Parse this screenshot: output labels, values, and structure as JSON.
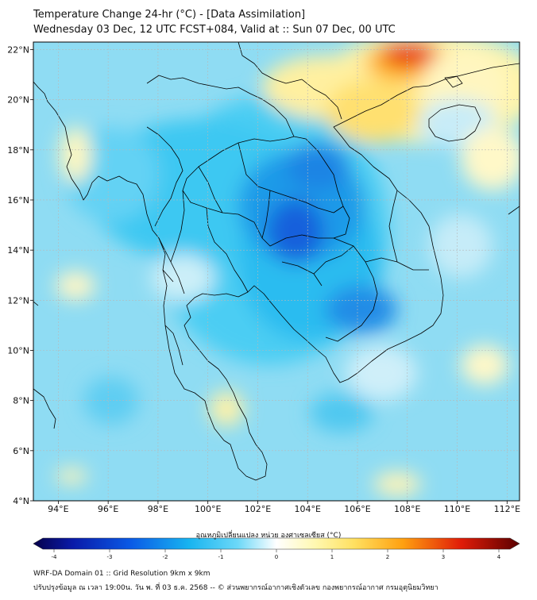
{
  "header": {
    "title": "Temperature Change 24-hr (°C) - [Data Assimilation]",
    "subtitle": "Wednesday 03 Dec, 12 UTC FCST+084, Valid at :: Sun 07 Dec, 00 UTC"
  },
  "map": {
    "lat_labels": [
      "22°N",
      "20°N",
      "18°N",
      "16°N",
      "14°N",
      "12°N",
      "10°N",
      "8°N",
      "6°N",
      "4°N"
    ],
    "lon_labels": [
      "94°E",
      "96°E",
      "98°E",
      "100°E",
      "102°E",
      "104°E",
      "106°E",
      "108°E",
      "110°E",
      "112°E"
    ],
    "lat_range": [
      4,
      22.3
    ],
    "lon_range": [
      93,
      112.5
    ]
  },
  "colorbar": {
    "label": "อุณหภูมิเปลี่ยนแปลง หน่วย องศาเซลเซียส (°C)",
    "ticks": [
      "-4",
      "-3",
      "-2",
      "-1",
      "0",
      "1",
      "2",
      "3",
      "4"
    ],
    "min": -4,
    "max": 4
  },
  "footer": {
    "line1": "WRF-DA Domain 01 :: Grid Resolution 9km x 9km",
    "line2": "ปรับปรุงข้อมูล ณ เวลา 19:00น. วัน พ. ที่ 03 ธ.ค. 2568 -- © ส่วนพยากรณ์อากาศเชิงตัวเลข กองพยากรณ์อากาศ กรมอุตุนิยมวิทยา"
  },
  "colors": {
    "ocean_base": "#8fdcf3",
    "land_cold": "#28c4f0",
    "deep_cold": "#1358d8",
    "warm_yellow": "#fff3a0",
    "warm_orange": "#ffb018",
    "hot_red": "#e01808",
    "coast": "#000000",
    "grid": "#b8b8b8"
  }
}
